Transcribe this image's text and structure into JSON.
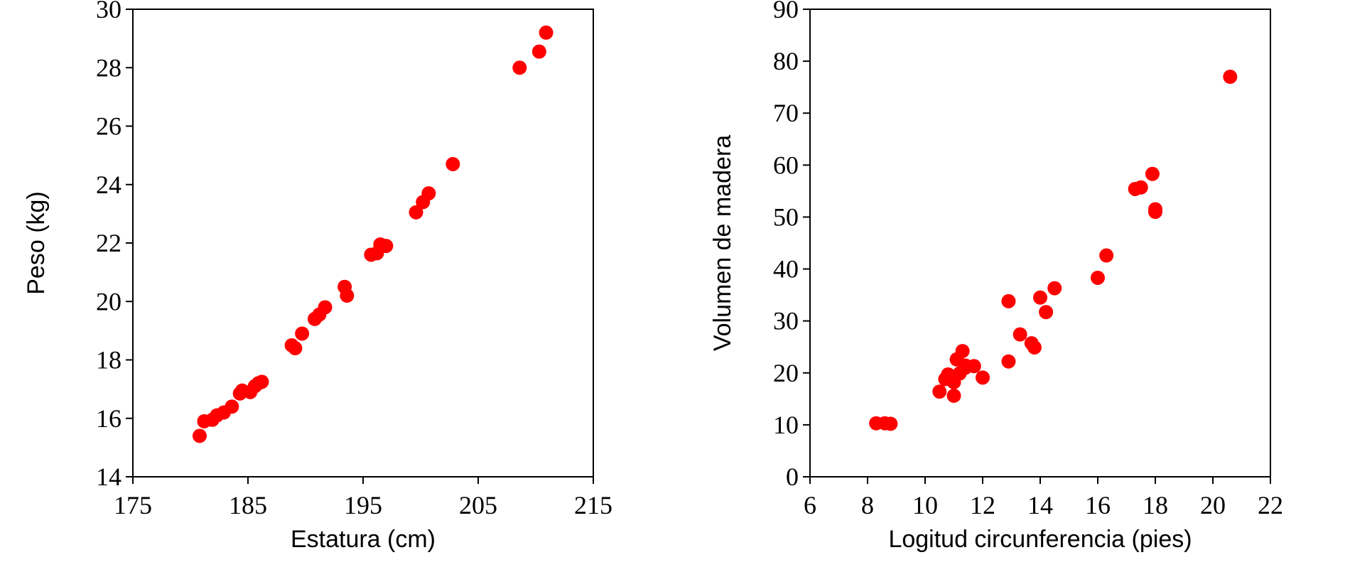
{
  "chart_data": [
    {
      "type": "scatter",
      "title": "",
      "xlabel": "Estatura (cm)",
      "ylabel": "Peso (kg)",
      "xlim": [
        175,
        215
      ],
      "ylim": [
        14,
        30
      ],
      "xticks": [
        175,
        185,
        195,
        205,
        215
      ],
      "yticks": [
        14,
        16,
        18,
        20,
        22,
        24,
        26,
        28,
        30
      ],
      "grid": false,
      "marker_color": "#ff0000",
      "points": [
        {
          "x": 180.8,
          "y": 15.4
        },
        {
          "x": 181.2,
          "y": 15.9
        },
        {
          "x": 181.9,
          "y": 15.95
        },
        {
          "x": 182.3,
          "y": 16.1
        },
        {
          "x": 182.9,
          "y": 16.2
        },
        {
          "x": 183.6,
          "y": 16.4
        },
        {
          "x": 184.3,
          "y": 16.85
        },
        {
          "x": 184.5,
          "y": 16.95
        },
        {
          "x": 185.2,
          "y": 16.9
        },
        {
          "x": 185.6,
          "y": 17.1
        },
        {
          "x": 185.9,
          "y": 17.2
        },
        {
          "x": 186.2,
          "y": 17.25
        },
        {
          "x": 188.8,
          "y": 18.5
        },
        {
          "x": 189.1,
          "y": 18.4
        },
        {
          "x": 189.7,
          "y": 18.9
        },
        {
          "x": 190.8,
          "y": 19.4
        },
        {
          "x": 191.2,
          "y": 19.55
        },
        {
          "x": 191.7,
          "y": 19.8
        },
        {
          "x": 193.4,
          "y": 20.5
        },
        {
          "x": 193.6,
          "y": 20.2
        },
        {
          "x": 195.7,
          "y": 21.6
        },
        {
          "x": 196.2,
          "y": 21.65
        },
        {
          "x": 196.5,
          "y": 21.95
        },
        {
          "x": 197.0,
          "y": 21.9
        },
        {
          "x": 199.6,
          "y": 23.05
        },
        {
          "x": 200.2,
          "y": 23.4
        },
        {
          "x": 200.7,
          "y": 23.7
        },
        {
          "x": 202.8,
          "y": 24.7
        },
        {
          "x": 208.6,
          "y": 28.0
        },
        {
          "x": 210.3,
          "y": 28.55
        },
        {
          "x": 210.9,
          "y": 29.2
        }
      ]
    },
    {
      "type": "scatter",
      "title": "",
      "xlabel": "Logitud circunferencia (pies)",
      "ylabel": "Volumen de madera",
      "xlim": [
        6,
        22
      ],
      "ylim": [
        0,
        90
      ],
      "xticks": [
        6,
        8,
        10,
        12,
        14,
        16,
        18,
        20,
        22
      ],
      "yticks": [
        0,
        10,
        20,
        30,
        40,
        50,
        60,
        70,
        80,
        90
      ],
      "grid": false,
      "marker_color": "#ff0000",
      "points": [
        {
          "x": 8.3,
          "y": 10.3
        },
        {
          "x": 8.6,
          "y": 10.3
        },
        {
          "x": 8.8,
          "y": 10.2
        },
        {
          "x": 10.5,
          "y": 16.4
        },
        {
          "x": 10.7,
          "y": 18.8
        },
        {
          "x": 10.8,
          "y": 19.7
        },
        {
          "x": 11.0,
          "y": 15.6
        },
        {
          "x": 11.0,
          "y": 18.2
        },
        {
          "x": 11.1,
          "y": 22.6
        },
        {
          "x": 11.2,
          "y": 19.9
        },
        {
          "x": 11.3,
          "y": 24.2
        },
        {
          "x": 11.4,
          "y": 21.0
        },
        {
          "x": 11.4,
          "y": 21.4
        },
        {
          "x": 11.7,
          "y": 21.3
        },
        {
          "x": 12.0,
          "y": 19.1
        },
        {
          "x": 12.9,
          "y": 22.2
        },
        {
          "x": 12.9,
          "y": 33.8
        },
        {
          "x": 13.3,
          "y": 27.4
        },
        {
          "x": 13.7,
          "y": 25.7
        },
        {
          "x": 13.8,
          "y": 24.9
        },
        {
          "x": 14.0,
          "y": 34.5
        },
        {
          "x": 14.2,
          "y": 31.7
        },
        {
          "x": 14.5,
          "y": 36.3
        },
        {
          "x": 16.0,
          "y": 38.3
        },
        {
          "x": 16.3,
          "y": 42.6
        },
        {
          "x": 17.3,
          "y": 55.4
        },
        {
          "x": 17.5,
          "y": 55.7
        },
        {
          "x": 17.9,
          "y": 58.3
        },
        {
          "x": 18.0,
          "y": 51.5
        },
        {
          "x": 18.0,
          "y": 51.0
        },
        {
          "x": 20.6,
          "y": 77.0
        }
      ]
    }
  ]
}
